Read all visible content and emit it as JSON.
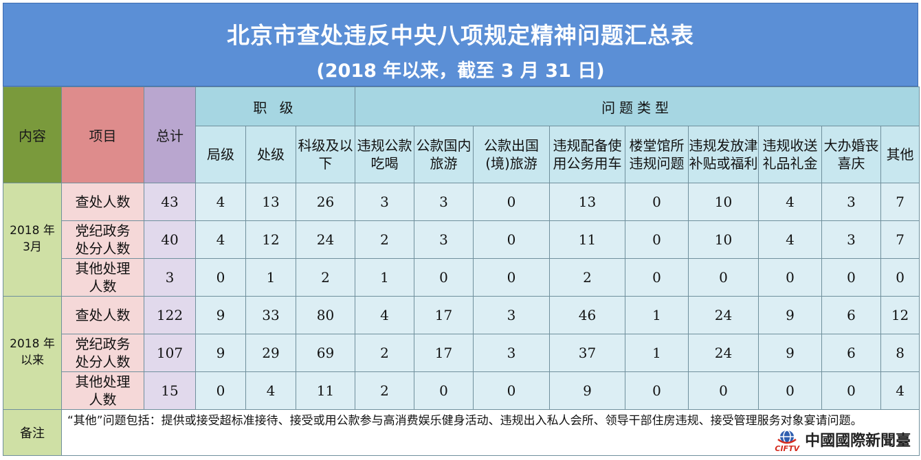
{
  "header": {
    "title": "北京市查处违反中央八项规定精神问题汇总表",
    "subtitle": "(2018 年以来，截至 3 月 31 日)"
  },
  "columns": {
    "content": "内容",
    "item": "项目",
    "total": "总计",
    "rank_group": "职  级",
    "type_group": "问题类型",
    "rank": [
      "局级",
      "处级",
      "科级及以下"
    ],
    "types": [
      "违规公款吃喝",
      "公款国内旅游",
      "公款出国(境)旅游",
      "违规配备使用公务用车",
      "楼堂馆所违规问题",
      "违规发放津补贴或福利",
      "违规收送礼品礼金",
      "大办婚丧喜庆",
      "其他"
    ]
  },
  "groups": [
    {
      "label": "2018 年\n3月",
      "rows": [
        {
          "label": "查处人数",
          "values": [
            "43",
            "4",
            "13",
            "26",
            "3",
            "3",
            "0",
            "13",
            "0",
            "10",
            "4",
            "3",
            "7"
          ]
        },
        {
          "label": "党纪政务处分人数",
          "values": [
            "40",
            "4",
            "12",
            "24",
            "2",
            "3",
            "0",
            "11",
            "0",
            "10",
            "4",
            "3",
            "7"
          ]
        },
        {
          "label": "其他处理人数",
          "values": [
            "3",
            "0",
            "1",
            "2",
            "1",
            "0",
            "0",
            "2",
            "0",
            "0",
            "0",
            "0",
            "0"
          ]
        }
      ]
    },
    {
      "label": "2018 年\n以来",
      "rows": [
        {
          "label": "查处人数",
          "values": [
            "122",
            "9",
            "33",
            "80",
            "4",
            "17",
            "3",
            "46",
            "1",
            "24",
            "9",
            "6",
            "12"
          ]
        },
        {
          "label": "党纪政务处分人数",
          "values": [
            "107",
            "9",
            "29",
            "69",
            "2",
            "17",
            "3",
            "37",
            "1",
            "24",
            "9",
            "6",
            "8"
          ]
        },
        {
          "label": "其他处理人数",
          "values": [
            "15",
            "0",
            "4",
            "11",
            "2",
            "0",
            "0",
            "9",
            "0",
            "0",
            "0",
            "0",
            "4"
          ]
        }
      ]
    }
  ],
  "notes": {
    "label": "备注",
    "text": "“其他”问题包括：提供或接受超标准接待、接受或用公款参与高消费娱乐健身活动、违规出入私人会所、领导干部住房违规、接受管理服务对象宴请问题。"
  },
  "logo": {
    "icon": "cifty-globe-icon",
    "en": "CIFTV",
    "cn": "中國國際新聞臺"
  }
}
